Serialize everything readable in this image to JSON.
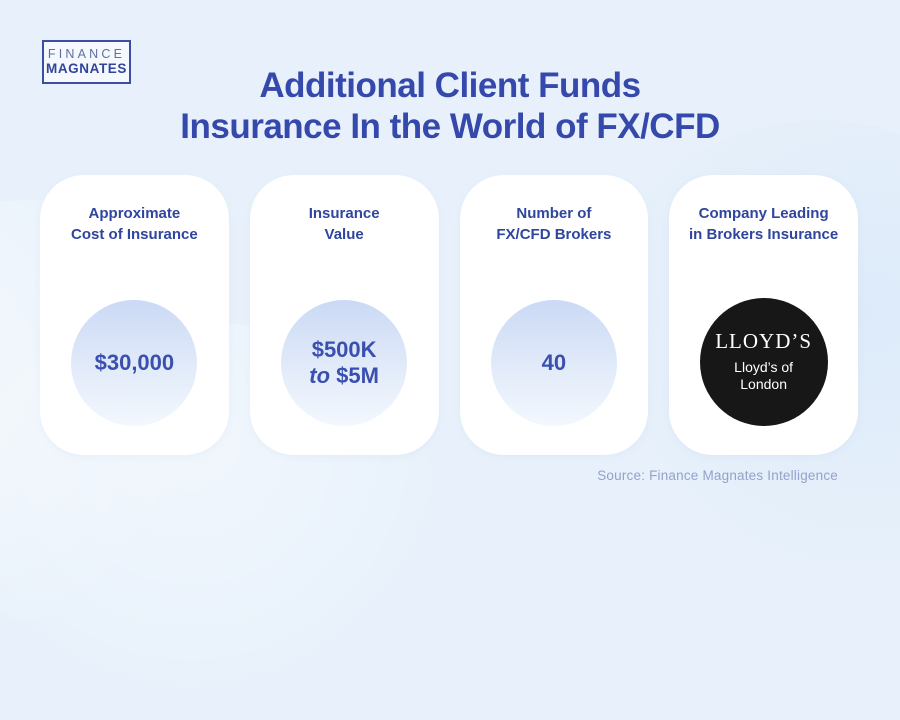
{
  "brand": {
    "line1": "FINANCE",
    "line2": "MAGNATES"
  },
  "title": {
    "line1": "Additional Client Funds",
    "line2": "Insurance In the World of FX/CFD"
  },
  "cards": [
    {
      "header_line1": "Approximate",
      "header_line2": "Cost of Insurance",
      "value": "$30,000"
    },
    {
      "header_line1": "Insurance",
      "header_line2": "Value",
      "value_line1": "$500K",
      "value_to": "to",
      "value_line2_rest": "$5M"
    },
    {
      "header_line1": "Number of",
      "header_line2": "FX/CFD Brokers",
      "value": "40"
    },
    {
      "header_line1": "Company Leading",
      "header_line2": "in Brokers Insurance",
      "logo_main": "LLOYD’S",
      "logo_sub_line1": "Lloyd’s of",
      "logo_sub_line2": "London"
    }
  ],
  "footer": {
    "source": "Source: Finance Magnates Intelligence"
  },
  "colors": {
    "page_background": "#e8f1fb",
    "card_background": "#ffffff",
    "title_blue": "#3548ab",
    "header_blue": "#2f459e",
    "value_blue": "#3a4fb0",
    "circle_gradient_top": "#cbd9f5",
    "circle_gradient_bottom": "#f3f8fe",
    "lloyds_circle": "#171717",
    "source_text": "#92a2cb",
    "logo_border": "#3b4da5"
  }
}
